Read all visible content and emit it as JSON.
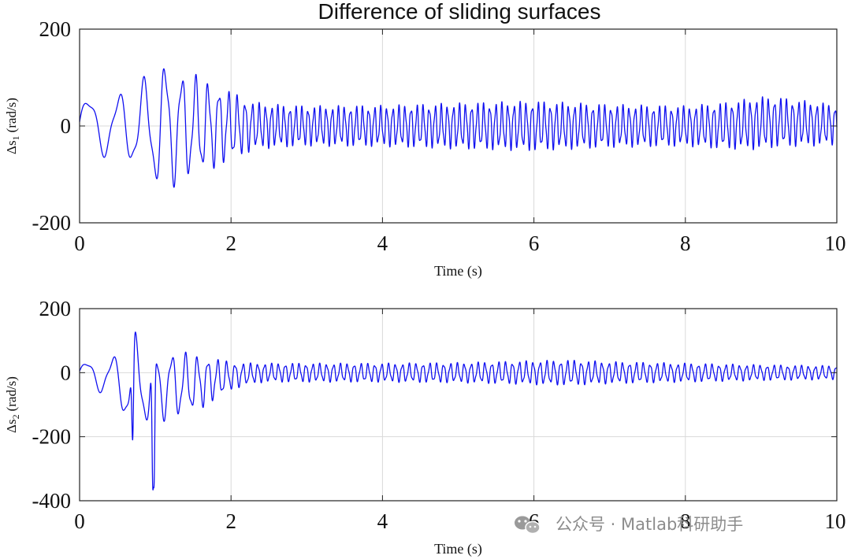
{
  "figure_title": "Difference of sliding surfaces",
  "watermark": {
    "text": "公众号 · Matlab科研助手",
    "icon": "wechat-icon"
  },
  "colors": {
    "series": "#1010f0",
    "grid": "#d9d9d9",
    "axes": "#222222"
  },
  "chart_data": [
    {
      "type": "line",
      "title": "Difference of sliding surfaces",
      "xlabel": "Time (s)",
      "ylabel_main": "Δs",
      "ylabel_sub": "1",
      "ylabel_unit": "(rad/s)",
      "xlim": [
        0,
        10
      ],
      "ylim": [
        -200,
        200
      ],
      "xticks": [
        0,
        2,
        4,
        6,
        8,
        10
      ],
      "yticks": [
        -200,
        0,
        200
      ],
      "xtick_labels": [
        "0",
        "2",
        "4",
        "6",
        "8",
        "10"
      ],
      "ytick_labels": [
        "-200",
        "0",
        "200"
      ],
      "grid": true,
      "series": [
        {
          "color": "#1010f0",
          "envelope": [
            [
              0.0,
              65
            ],
            [
              0.3,
              65
            ],
            [
              0.5,
              70
            ],
            [
              0.8,
              95
            ],
            [
              1.0,
              125
            ],
            [
              1.1,
              145
            ],
            [
              1.3,
              120
            ],
            [
              1.5,
              110
            ],
            [
              1.7,
              95
            ],
            [
              1.9,
              80
            ],
            [
              2.1,
              65
            ],
            [
              2.3,
              50
            ],
            [
              2.6,
              45
            ],
            [
              3.0,
              42
            ],
            [
              4.0,
              43
            ],
            [
              5.0,
              48
            ],
            [
              6.0,
              52
            ],
            [
              7.0,
              45
            ],
            [
              8.0,
              42
            ],
            [
              9.0,
              55
            ],
            [
              10.0,
              42
            ]
          ],
          "offset": [
            [
              0,
              0
            ],
            [
              8.5,
              0
            ],
            [
              9.2,
              8
            ],
            [
              10,
              2
            ]
          ],
          "freq_hz": [
            [
              0,
              2.0
            ],
            [
              1.0,
              3.5
            ],
            [
              1.8,
              7
            ],
            [
              2.5,
              12.5
            ],
            [
              10,
              12.5
            ]
          ]
        }
      ]
    },
    {
      "type": "line",
      "xlabel": "Time (s)",
      "ylabel_main": "Δs",
      "ylabel_sub": "2",
      "ylabel_unit": "(rad/s)",
      "xlim": [
        0,
        10
      ],
      "ylim": [
        -400,
        200
      ],
      "xticks": [
        0,
        2,
        4,
        6,
        8,
        10
      ],
      "yticks": [
        -400,
        -200,
        0,
        200
      ],
      "xtick_labels": [
        "0",
        "2",
        "4",
        "6",
        "8",
        "10"
      ],
      "ytick_labels": [
        "-400",
        "-200",
        "0",
        "200"
      ],
      "grid": true,
      "series": [
        {
          "color": "#1010f0",
          "envelope": [
            [
              0.0,
              35
            ],
            [
              0.3,
              55
            ],
            [
              0.5,
              80
            ],
            [
              0.65,
              170
            ],
            [
              0.8,
              150
            ],
            [
              1.0,
              120
            ],
            [
              1.2,
              110
            ],
            [
              1.4,
              100
            ],
            [
              1.6,
              85
            ],
            [
              1.8,
              65
            ],
            [
              2.0,
              45
            ],
            [
              2.2,
              35
            ],
            [
              2.5,
              30
            ],
            [
              3.0,
              30
            ],
            [
              4.0,
              30
            ],
            [
              5.0,
              32
            ],
            [
              6.0,
              38
            ],
            [
              6.5,
              40
            ],
            [
              7.0,
              35
            ],
            [
              8.0,
              30
            ],
            [
              9.0,
              25
            ],
            [
              10.0,
              22
            ]
          ],
          "offset": [
            [
              0,
              0
            ],
            [
              0.8,
              -30
            ],
            [
              1.2,
              -40
            ],
            [
              1.6,
              -30
            ],
            [
              2.0,
              -10
            ],
            [
              2.4,
              0
            ],
            [
              10,
              0
            ]
          ],
          "freq_hz": [
            [
              0,
              2.5
            ],
            [
              1.0,
              4
            ],
            [
              1.8,
              8
            ],
            [
              2.4,
              11
            ],
            [
              10,
              11
            ]
          ],
          "spikes": [
            [
              0.7,
              -210
            ],
            [
              0.97,
              -380
            ],
            [
              0.98,
              -360
            ]
          ]
        }
      ]
    }
  ]
}
